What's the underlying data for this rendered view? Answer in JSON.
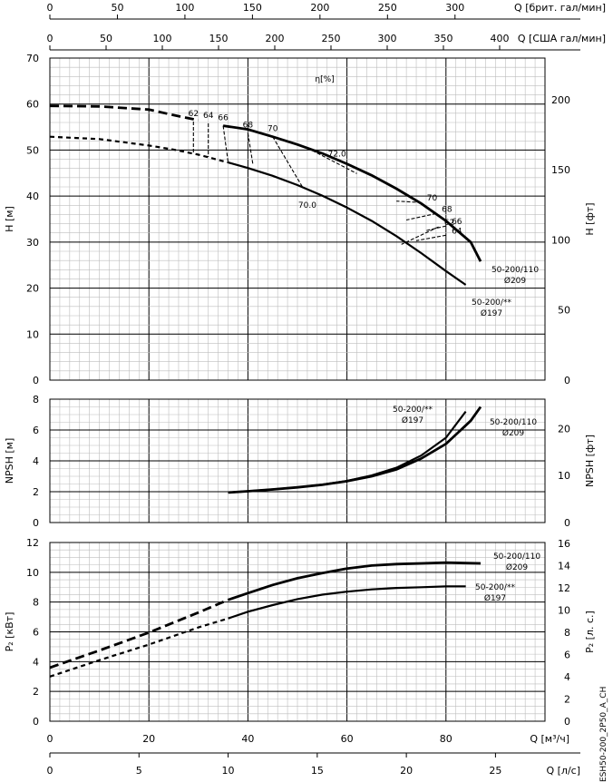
{
  "chart_data": {
    "type": "line",
    "top_axes": [
      {
        "label": "Q [брит. гал/мин]",
        "ticks": [
          "0",
          "50",
          "100",
          "150",
          "200",
          "250",
          "300"
        ],
        "lpm_per_unit": 4.546
      },
      {
        "label": "Q [США гал/мин]",
        "ticks": [
          "0",
          "50",
          "100",
          "150",
          "200",
          "250",
          "300",
          "350",
          "400"
        ],
        "lpm_per_unit": 3.785
      }
    ],
    "bottom_axes": [
      {
        "label": "Q [м³/ч]",
        "ticks": [
          "0",
          "20",
          "40",
          "60",
          "80"
        ],
        "xlim": [
          0,
          100
        ]
      },
      {
        "label": "Q [л/с]",
        "ticks": [
          "0",
          "5",
          "10",
          "15",
          "20",
          "25"
        ]
      }
    ],
    "panels": [
      {
        "id": "head",
        "ylabel_left": "H [м]",
        "ylabel_right": "H [фт]",
        "ylim": [
          0,
          70
        ],
        "yticks_left": [
          "0",
          "10",
          "20",
          "30",
          "40",
          "50",
          "60",
          "70"
        ],
        "yticks_right": [
          "0",
          "50",
          "100",
          "150",
          "200"
        ],
        "efficiency_label": "η[%]",
        "series": [
          {
            "name": "50-200/110 Ø209",
            "label_lines": [
              "50-200/110",
              "Ø209"
            ],
            "x": [
              0,
              10,
              20,
              25,
              30,
              35,
              40,
              45,
              50,
              55,
              60,
              65,
              70,
              75,
              80,
              85,
              87
            ],
            "y": [
              59.6,
              59.5,
              58.8,
              57.6,
              56.5,
              55.3,
              54.5,
              52.9,
              51.2,
              49.3,
              47.0,
              44.5,
              41.6,
              38.4,
              34.6,
              30.0,
              25.8
            ],
            "dashed_until": 32
          },
          {
            "name": "50-200/** Ø197",
            "label_lines": [
              "50-200/**",
              "Ø197"
            ],
            "x": [
              0,
              10,
              20,
              25,
              30,
              36,
              40,
              45,
              50,
              55,
              60,
              65,
              70,
              75,
              80,
              84
            ],
            "y": [
              52.9,
              52.4,
              51.0,
              50.1,
              49.0,
              47.3,
              46.1,
              44.4,
              42.4,
              40.1,
              37.5,
              34.6,
              31.3,
              27.6,
              23.7,
              20.7
            ],
            "dashed_until": 36
          }
        ],
        "efficiency_contours": [
          {
            "label": "62",
            "left": [
              [
                29,
                56.2
              ],
              [
                29,
                49.5
              ]
            ],
            "right": [
              [
                78.5,
                33.3
              ],
              [
                71,
                29.5
              ]
            ]
          },
          {
            "label": "64",
            "left": [
              [
                32,
                55.8
              ],
              [
                32,
                48.5
              ]
            ],
            "right": [
              [
                80,
                31.5
              ],
              [
                74,
                30.3
              ]
            ]
          },
          {
            "label": "66",
            "left": [
              [
                35,
                55.3
              ],
              [
                36,
                47.3
              ]
            ],
            "right": [
              [
                80,
                33.5
              ],
              [
                76,
                32.5
              ]
            ]
          },
          {
            "label": "68",
            "left": [
              [
                40,
                53.7
              ],
              [
                41,
                46.9
              ]
            ],
            "right": [
              [
                78,
                36.2
              ],
              [
                72,
                34.8
              ]
            ]
          },
          {
            "label": "70",
            "left": [
              [
                45,
                52.9
              ],
              [
                51,
                42.0
              ]
            ],
            "right": [
              [
                75,
                38.6
              ],
              [
                70,
                38.9
              ]
            ]
          },
          {
            "label": "72.0",
            "left": [
              [
                53,
                49.9
              ],
              [
                62,
                44.9
              ]
            ]
          },
          {
            "label": "70.0",
            "left": [
              [
                51,
                42.0
              ],
              [
                56,
                39.5
              ]
            ]
          }
        ]
      },
      {
        "id": "npsh",
        "ylabel_left": "NPSH [м]",
        "ylabel_right": "NPSH [фт]",
        "ylim": [
          0,
          8
        ],
        "yticks_left": [
          "0",
          "2",
          "4",
          "6",
          "8"
        ],
        "yticks_right": [
          "0",
          "10",
          "20"
        ],
        "series": [
          {
            "name": "50-200/110 Ø209",
            "label_lines": [
              "50-200/110",
              "Ø209"
            ],
            "x": [
              36,
              40,
              45,
              50,
              55,
              60,
              65,
              70,
              75,
              80,
              85,
              87
            ],
            "y": [
              1.95,
              2.03,
              2.15,
              2.28,
              2.45,
              2.68,
              3.0,
              3.45,
              4.15,
              5.1,
              6.6,
              7.5
            ]
          },
          {
            "name": "50-200/** Ø197",
            "label_lines": [
              "50-200/**",
              "Ø197"
            ],
            "x": [
              36,
              40,
              45,
              50,
              55,
              60,
              65,
              70,
              75,
              80,
              84
            ],
            "y": [
              1.95,
              2.03,
              2.15,
              2.28,
              2.46,
              2.7,
              3.05,
              3.55,
              4.35,
              5.5,
              7.2
            ]
          }
        ]
      },
      {
        "id": "power",
        "ylabel_left": "P₂ [кВт]",
        "ylabel_right": "P₂ [л. с.]",
        "ylim": [
          0,
          12
        ],
        "yticks_left": [
          "0",
          "2",
          "4",
          "6",
          "8",
          "10",
          "12"
        ],
        "yticks_right": [
          "0",
          "2",
          "4",
          "6",
          "8",
          "10",
          "12",
          "14",
          "16"
        ],
        "series": [
          {
            "name": "50-200/110 Ø209",
            "label_lines": [
              "50-200/110",
              "Ø209"
            ],
            "x": [
              0,
              10,
              20,
              30,
              36,
              40,
              45,
              50,
              55,
              60,
              65,
              70,
              75,
              80,
              87
            ],
            "y": [
              3.6,
              4.75,
              5.95,
              7.3,
              8.15,
              8.6,
              9.15,
              9.6,
              9.95,
              10.25,
              10.45,
              10.55,
              10.6,
              10.65,
              10.6
            ],
            "dashed_until": 36
          },
          {
            "name": "50-200/** Ø197",
            "label_lines": [
              "50-200/**",
              "Ø197"
            ],
            "x": [
              0,
              10,
              20,
              30,
              36,
              40,
              45,
              50,
              55,
              60,
              65,
              70,
              75,
              80,
              84
            ],
            "y": [
              3.0,
              4.1,
              5.15,
              6.3,
              6.9,
              7.35,
              7.8,
              8.2,
              8.5,
              8.7,
              8.85,
              8.95,
              9.0,
              9.05,
              9.05
            ],
            "dashed_until": 36
          }
        ]
      }
    ]
  },
  "footer": {
    "code": "ESH50-200_2P50_A_CH"
  }
}
